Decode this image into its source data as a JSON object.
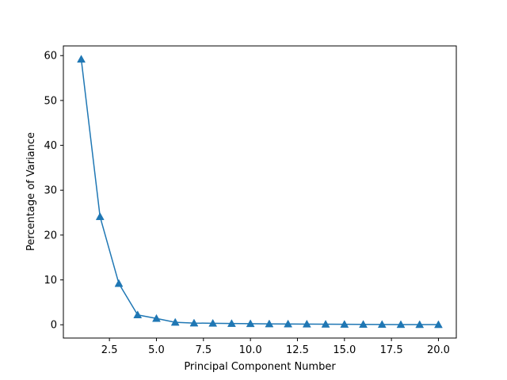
{
  "chart_data": {
    "type": "line",
    "title": "",
    "xlabel": "Principal Component Number",
    "ylabel": "Percentage of Variance",
    "xlim": [
      0.05,
      20.95
    ],
    "ylim": [
      -2.96,
      62.16
    ],
    "xticks": [
      2.5,
      5.0,
      7.5,
      10.0,
      12.5,
      15.0,
      17.5,
      20.0
    ],
    "xtick_labels": [
      "2.5",
      "5.0",
      "7.5",
      "10.0",
      "12.5",
      "15.0",
      "17.5",
      "20.0"
    ],
    "yticks": [
      0,
      10,
      20,
      30,
      40,
      50,
      60
    ],
    "ytick_labels": [
      "0",
      "10",
      "20",
      "30",
      "40",
      "50",
      "60"
    ],
    "grid": false,
    "legend": "none",
    "series": [
      {
        "color": "#1f77b4",
        "marker": "triangle-up",
        "x": [
          1,
          2,
          3,
          4,
          5,
          6,
          7,
          8,
          9,
          10,
          11,
          12,
          13,
          14,
          15,
          16,
          17,
          18,
          19,
          20
        ],
        "y": [
          59.2,
          24.1,
          9.2,
          2.2,
          1.4,
          0.55,
          0.38,
          0.33,
          0.28,
          0.24,
          0.2,
          0.18,
          0.15,
          0.12,
          0.1,
          0.08,
          0.07,
          0.05,
          0.04,
          0.03
        ]
      }
    ]
  }
}
